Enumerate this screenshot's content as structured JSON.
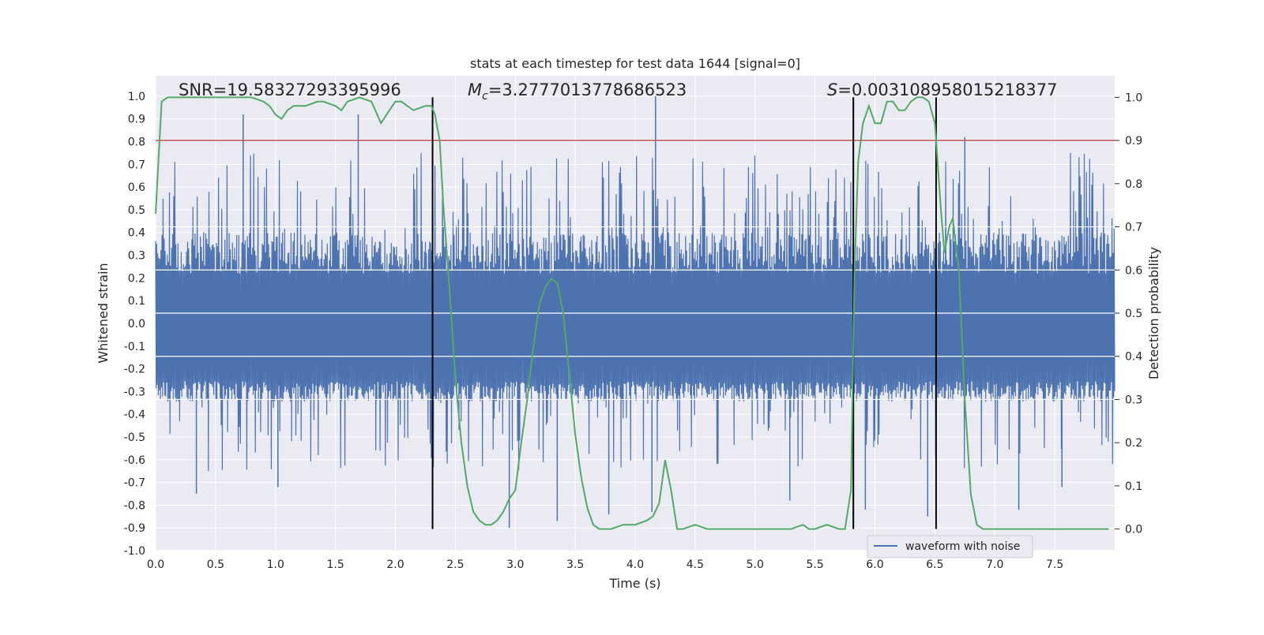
{
  "chart_data": {
    "type": "line",
    "title": "stats at each timestep for test data 1644 [signal=0]",
    "xlabel": "Time (s)",
    "ylabel": "Whitened strain",
    "y2label": "Detection probability",
    "xlim": [
      0.0,
      8.0
    ],
    "ylim": [
      -1.0,
      1.09
    ],
    "y2lim": [
      -0.05,
      1.05
    ],
    "x_ticks": [
      "0.0",
      "0.5",
      "1.0",
      "1.5",
      "2.0",
      "2.5",
      "3.0",
      "3.5",
      "4.0",
      "4.5",
      "5.0",
      "5.5",
      "6.0",
      "6.5",
      "7.0",
      "7.5"
    ],
    "y_ticks": [
      "1.0",
      "0.9",
      "0.8",
      "0.7",
      "0.6",
      "0.5",
      "0.4",
      "0.3",
      "0.2",
      "0.1",
      "0.0",
      "-0.1",
      "-0.2",
      "-0.3",
      "-0.4",
      "-0.5",
      "-0.6",
      "-0.7",
      "-0.8",
      "-0.9",
      "-1.0"
    ],
    "y2_ticks": [
      "1.0",
      "0.9",
      "0.8",
      "0.7",
      "0.6",
      "0.5",
      "0.4",
      "0.3",
      "0.2",
      "0.1",
      "0.0"
    ],
    "grid": true,
    "legend": {
      "placement": "lower-right",
      "entries": [
        "waveform with noise"
      ]
    },
    "annotations": [
      {
        "id": "snr",
        "text": "SNR=19.58327293395996",
        "x": 0.19,
        "y": 1.02
      },
      {
        "id": "mc",
        "symbol": "M",
        "sub": "c",
        "rest": "=3.2777013778686523",
        "x": 2.6,
        "y": 1.02
      },
      {
        "id": "s",
        "symbol": "S",
        "rest": "=0.003108958015218377",
        "x": 5.6,
        "y": 1.02
      }
    ],
    "threshold": {
      "axis": "y2",
      "value": 0.9,
      "color": "#c44e52"
    },
    "vlines": [
      {
        "x": 2.31,
        "ymin": 0.0,
        "ymax": 1.0
      },
      {
        "x": 5.82,
        "ymin": 0.0,
        "ymax": 1.0
      },
      {
        "x": 6.51,
        "ymin": 0.0,
        "ymax": 1.0
      }
    ],
    "series": [
      {
        "name": "waveform with noise",
        "axis": "y",
        "color": "#4c72b0",
        "kind": "noise",
        "sample_count": 1800,
        "band": [
          -0.3,
          0.4
        ],
        "spikes": [
          {
            "x": 0.73,
            "y": 0.92
          },
          {
            "x": 1.69,
            "y": 0.92
          },
          {
            "x": 4.17,
            "y": 1.0
          },
          {
            "x": 6.75,
            "y": 0.82
          },
          {
            "x": 0.34,
            "y": -0.75
          },
          {
            "x": 1.02,
            "y": -0.72
          },
          {
            "x": 2.95,
            "y": -0.9
          },
          {
            "x": 3.35,
            "y": -0.87
          },
          {
            "x": 3.78,
            "y": -0.84
          },
          {
            "x": 4.14,
            "y": -0.83
          },
          {
            "x": 5.29,
            "y": -0.78
          },
          {
            "x": 5.92,
            "y": -0.82
          },
          {
            "x": 6.44,
            "y": -0.85
          },
          {
            "x": 7.2,
            "y": -0.82
          },
          {
            "x": 7.56,
            "y": -0.72
          }
        ]
      },
      {
        "name": "",
        "axis": "y2",
        "color": "#55a868",
        "points": [
          [
            0.0,
            0.73
          ],
          [
            0.05,
            0.99
          ],
          [
            0.1,
            1.0
          ],
          [
            0.2,
            1.0
          ],
          [
            0.4,
            1.0
          ],
          [
            0.6,
            1.0
          ],
          [
            0.8,
            1.0
          ],
          [
            0.9,
            0.99
          ],
          [
            0.95,
            0.98
          ],
          [
            1.0,
            0.96
          ],
          [
            1.05,
            0.95
          ],
          [
            1.1,
            0.97
          ],
          [
            1.15,
            0.98
          ],
          [
            1.25,
            0.98
          ],
          [
            1.35,
            0.99
          ],
          [
            1.4,
            0.99
          ],
          [
            1.5,
            0.98
          ],
          [
            1.55,
            0.97
          ],
          [
            1.6,
            0.99
          ],
          [
            1.7,
            1.0
          ],
          [
            1.8,
            0.99
          ],
          [
            1.88,
            0.94
          ],
          [
            1.95,
            0.97
          ],
          [
            2.0,
            0.99
          ],
          [
            2.05,
            0.99
          ],
          [
            2.15,
            0.97
          ],
          [
            2.25,
            0.98
          ],
          [
            2.3,
            0.98
          ],
          [
            2.33,
            0.96
          ],
          [
            2.37,
            0.9
          ],
          [
            2.4,
            0.75
          ],
          [
            2.45,
            0.56
          ],
          [
            2.5,
            0.35
          ],
          [
            2.55,
            0.2
          ],
          [
            2.6,
            0.1
          ],
          [
            2.65,
            0.04
          ],
          [
            2.7,
            0.02
          ],
          [
            2.75,
            0.01
          ],
          [
            2.8,
            0.01
          ],
          [
            2.85,
            0.02
          ],
          [
            2.9,
            0.04
          ],
          [
            2.95,
            0.07
          ],
          [
            3.0,
            0.09
          ],
          [
            3.05,
            0.2
          ],
          [
            3.1,
            0.3
          ],
          [
            3.15,
            0.42
          ],
          [
            3.2,
            0.52
          ],
          [
            3.25,
            0.56
          ],
          [
            3.3,
            0.58
          ],
          [
            3.35,
            0.57
          ],
          [
            3.4,
            0.5
          ],
          [
            3.45,
            0.36
          ],
          [
            3.5,
            0.22
          ],
          [
            3.55,
            0.12
          ],
          [
            3.6,
            0.05
          ],
          [
            3.65,
            0.01
          ],
          [
            3.7,
            0.0
          ],
          [
            3.8,
            0.0
          ],
          [
            3.9,
            0.01
          ],
          [
            4.0,
            0.01
          ],
          [
            4.1,
            0.02
          ],
          [
            4.15,
            0.03
          ],
          [
            4.2,
            0.06
          ],
          [
            4.25,
            0.16
          ],
          [
            4.3,
            0.09
          ],
          [
            4.35,
            0.0
          ],
          [
            4.4,
            0.0
          ],
          [
            4.5,
            0.01
          ],
          [
            4.6,
            0.0
          ],
          [
            4.8,
            0.0
          ],
          [
            5.0,
            0.0
          ],
          [
            5.2,
            0.0
          ],
          [
            5.3,
            0.0
          ],
          [
            5.4,
            0.01
          ],
          [
            5.45,
            0.0
          ],
          [
            5.5,
            0.0
          ],
          [
            5.6,
            0.01
          ],
          [
            5.7,
            0.0
          ],
          [
            5.75,
            0.0
          ],
          [
            5.8,
            0.09
          ],
          [
            5.83,
            0.6
          ],
          [
            5.86,
            0.85
          ],
          [
            5.9,
            0.94
          ],
          [
            5.95,
            0.98
          ],
          [
            6.0,
            0.94
          ],
          [
            6.05,
            0.94
          ],
          [
            6.1,
            0.99
          ],
          [
            6.15,
            0.99
          ],
          [
            6.2,
            0.97
          ],
          [
            6.25,
            0.97
          ],
          [
            6.3,
            0.99
          ],
          [
            6.35,
            1.0
          ],
          [
            6.4,
            1.0
          ],
          [
            6.45,
            0.99
          ],
          [
            6.5,
            0.94
          ],
          [
            6.55,
            0.74
          ],
          [
            6.58,
            0.64
          ],
          [
            6.62,
            0.7
          ],
          [
            6.65,
            0.72
          ],
          [
            6.7,
            0.6
          ],
          [
            6.75,
            0.3
          ],
          [
            6.8,
            0.08
          ],
          [
            6.85,
            0.01
          ],
          [
            6.9,
            0.0
          ],
          [
            7.0,
            0.0
          ],
          [
            7.2,
            0.0
          ],
          [
            7.5,
            0.0
          ],
          [
            7.7,
            0.0
          ],
          [
            7.8,
            0.0
          ],
          [
            7.95,
            0.0
          ]
        ]
      }
    ]
  }
}
